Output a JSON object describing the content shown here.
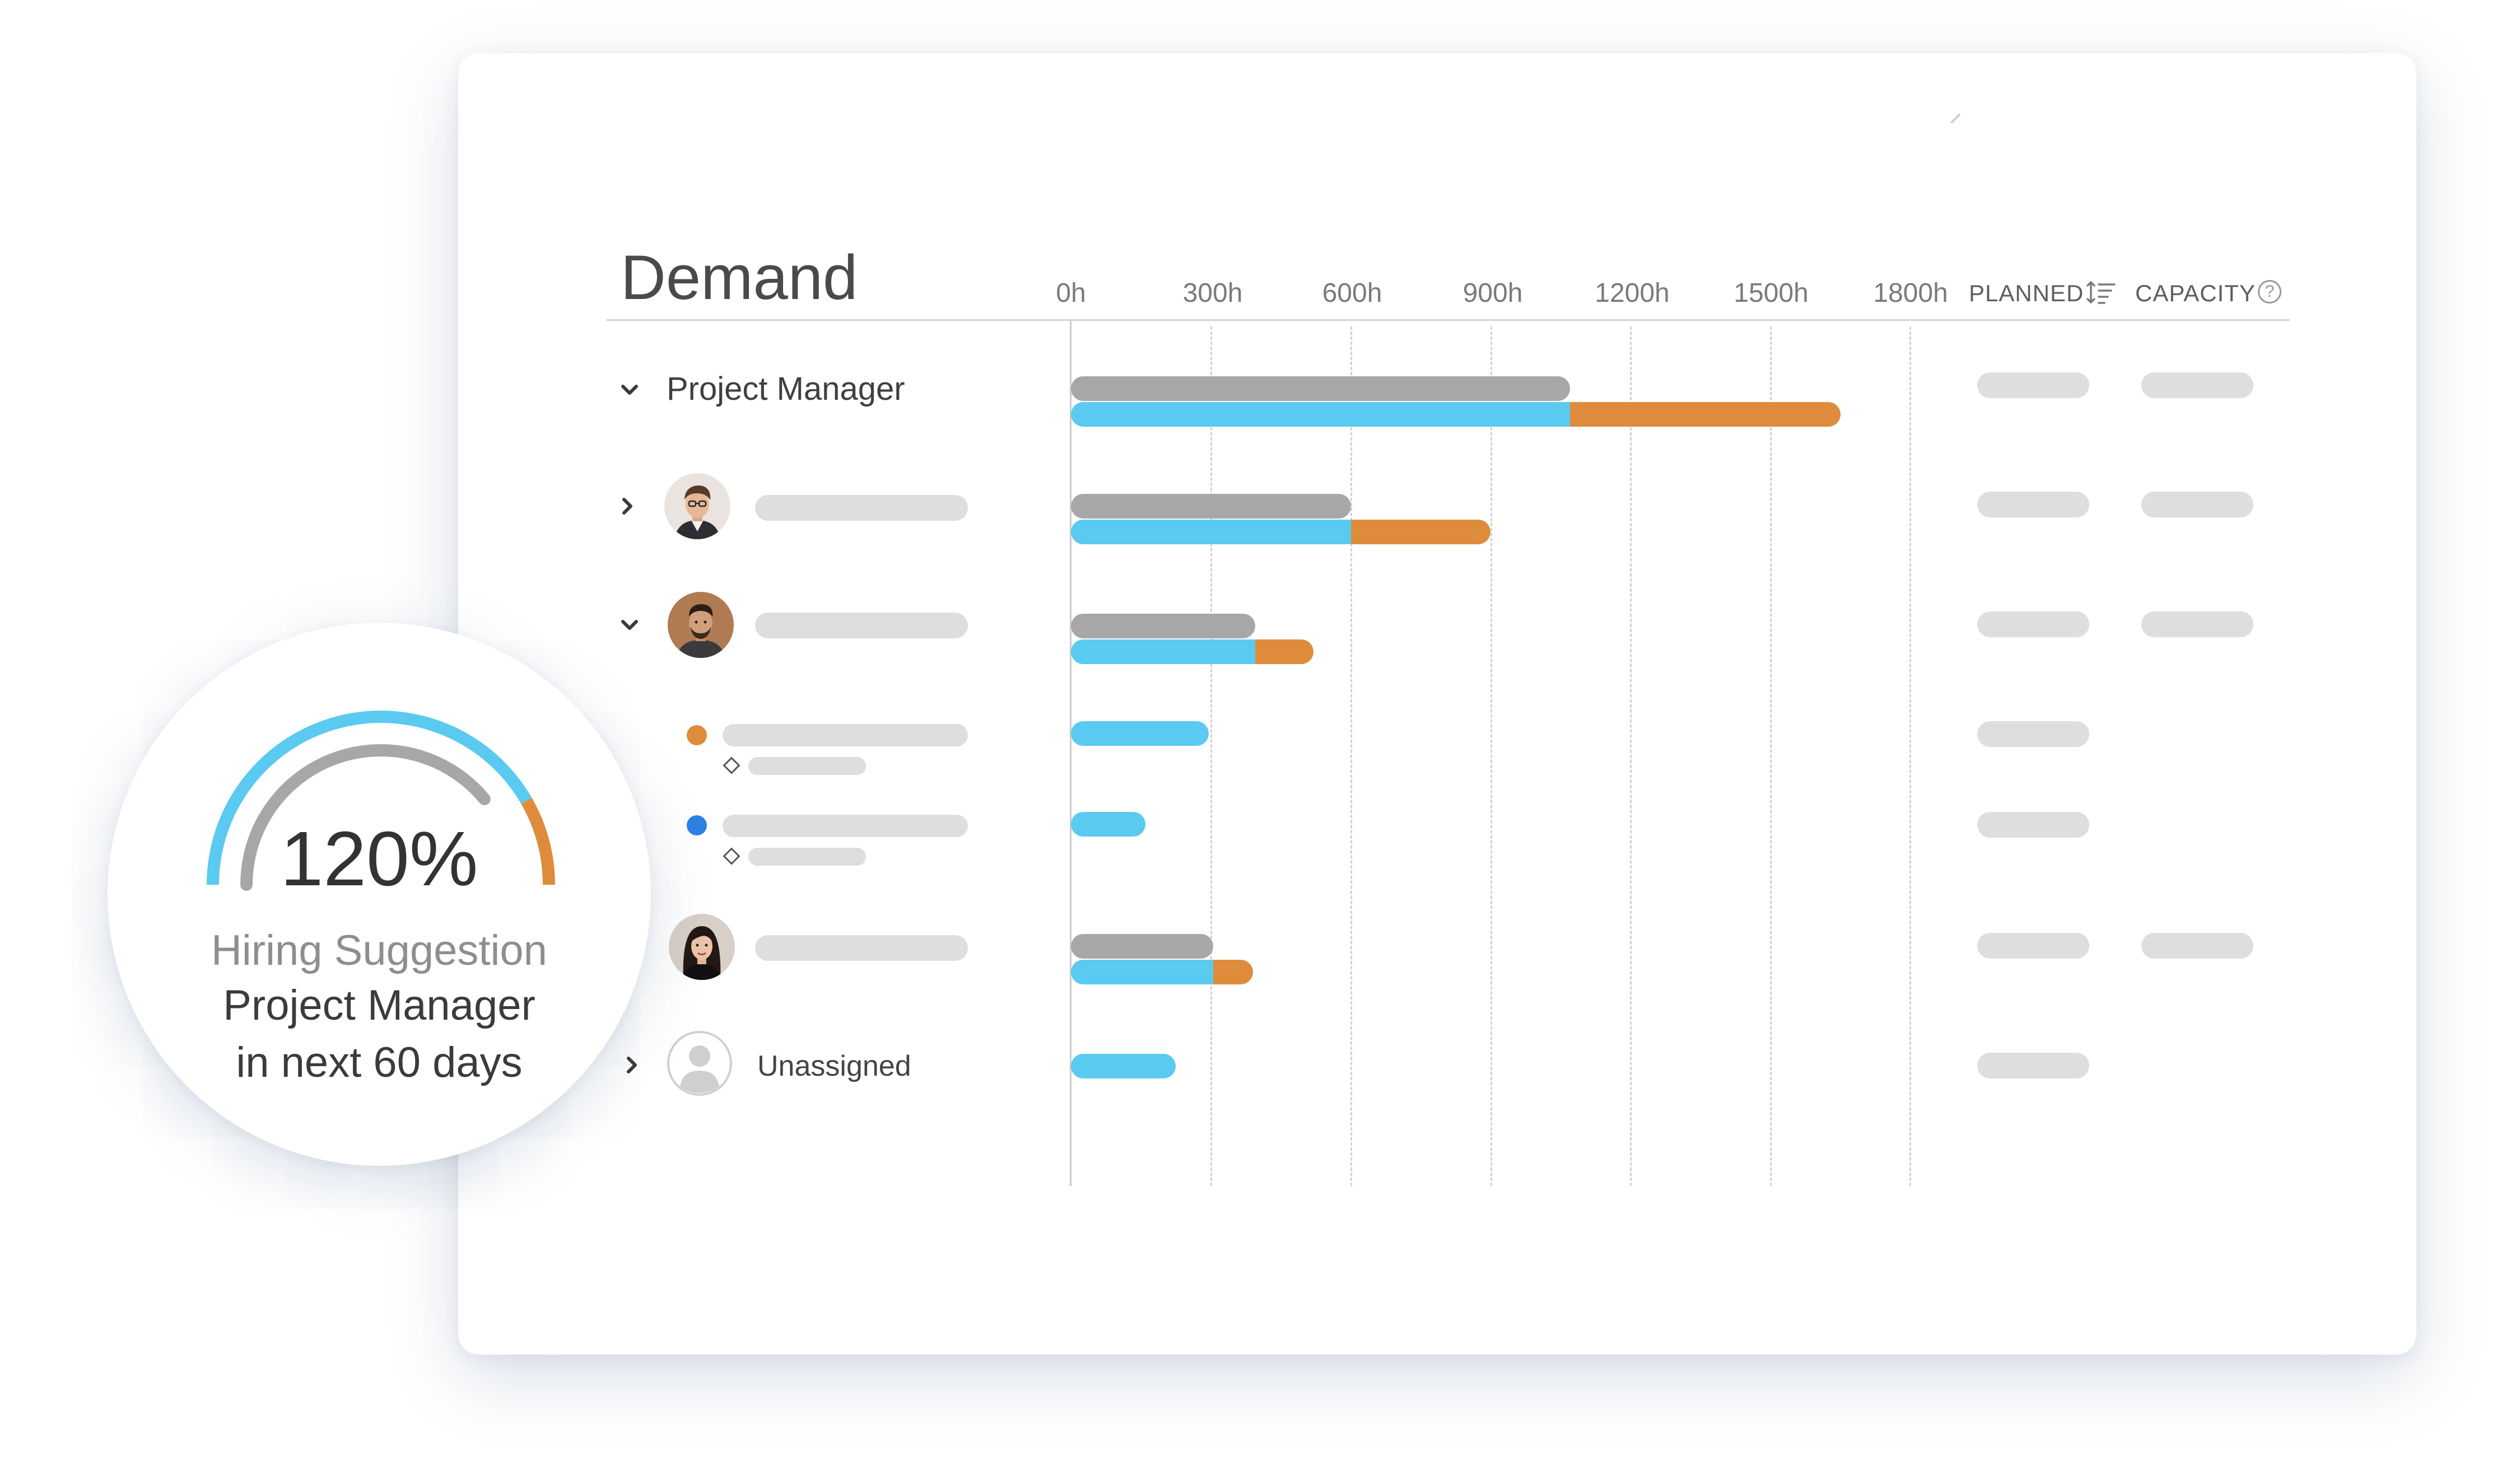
{
  "panel": {
    "title": "Demand",
    "columns": {
      "planned": "PLANNED",
      "capacity": "CAPACITY",
      "help_glyph": "?"
    },
    "axis": {
      "ticks": [
        "0h",
        "300h",
        "600h",
        "900h",
        "1200h",
        "1500h",
        "1800h"
      ],
      "max_hours": 1800
    },
    "rows": {
      "project_manager": {
        "label": "Project Manager",
        "expanded": true,
        "planned_hours": 1070,
        "demand_hours": 1650
      },
      "person_1": {
        "expanded": false,
        "planned_hours": 600,
        "demand_hours": 900
      },
      "person_2": {
        "expanded": true,
        "planned_hours": 395,
        "demand_hours": 520
      },
      "task_1": {
        "dot_color": "#de8c3c",
        "demand_hours": 295
      },
      "task_2": {
        "dot_color": "#2f80e3",
        "demand_hours": 160
      },
      "person_3": {
        "planned_hours": 305,
        "demand_hours": 390
      },
      "unassigned": {
        "label": "Unassigned",
        "expanded": false,
        "demand_hours": 225
      }
    },
    "colors": {
      "planned": "#a7a7a7",
      "demand": "#5bcaf0",
      "overflow": "#de8c3c"
    }
  },
  "badge": {
    "percent_text": "120%",
    "percent_value": 120,
    "line1": "Hiring Suggestion",
    "line2": "Project Manager",
    "line3": "in next 60 days"
  }
}
